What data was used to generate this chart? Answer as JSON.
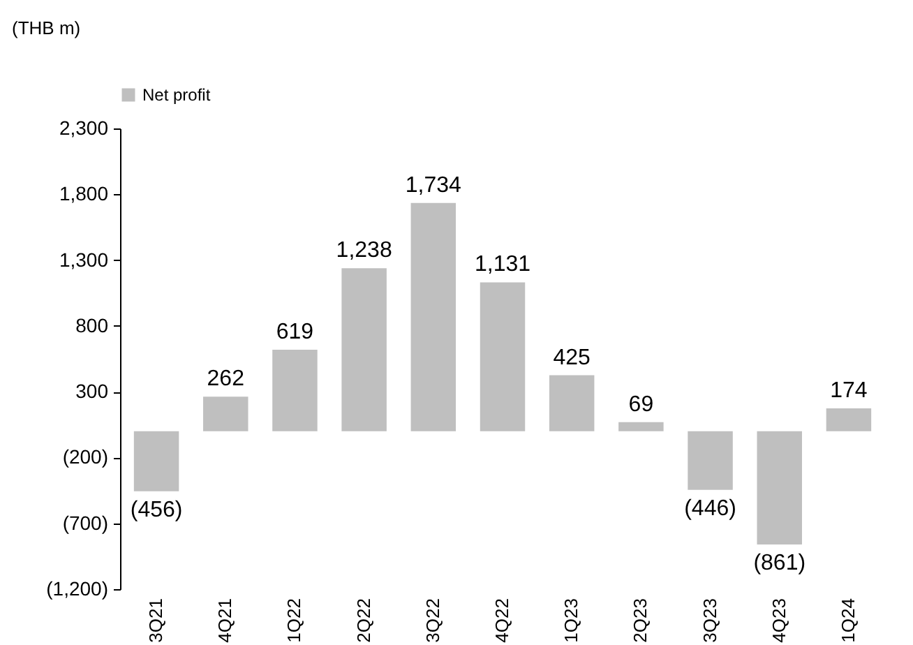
{
  "chart_data": {
    "type": "bar",
    "ylabel": "(THB m)",
    "categories": [
      "3Q21",
      "4Q21",
      "1Q22",
      "2Q22",
      "3Q22",
      "4Q22",
      "1Q23",
      "2Q23",
      "3Q23",
      "4Q23",
      "1Q24"
    ],
    "series": [
      {
        "name": "Net profit",
        "color": "#bfbfbf",
        "values": [
          -456,
          262,
          619,
          1238,
          1734,
          1131,
          425,
          69,
          -446,
          -861,
          174
        ],
        "value_labels": [
          "(456)",
          "262",
          "619",
          "1,238",
          "1,734",
          "1,131",
          "425",
          "69",
          "(446)",
          "(861)",
          "174"
        ]
      }
    ],
    "ylim": [
      -1200,
      2300
    ],
    "yticks": [
      {
        "value": -1200,
        "label": "(1,200)"
      },
      {
        "value": -700,
        "label": "(700)"
      },
      {
        "value": -200,
        "label": "(200)"
      },
      300,
      800,
      {
        "value": 1300,
        "label": "1,300"
      },
      {
        "value": 1800,
        "label": "1,800"
      },
      {
        "value": 2300,
        "label": "2,300"
      }
    ],
    "legend": "top",
    "grid": false
  }
}
